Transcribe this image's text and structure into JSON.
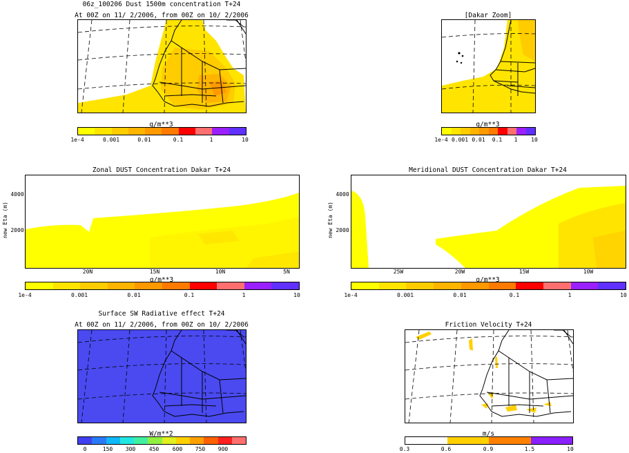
{
  "dust_map": {
    "title": "06z_100206 Dust 1500m concentration T+24",
    "subtitle": "At 00Z on 11/ 2/2006, from 00Z on 10/ 2/2006",
    "units": "g/m**3",
    "ticks": [
      "1e-4",
      "0.001",
      "0.01",
      "0.1",
      "1",
      "10"
    ]
  },
  "dakar_zoom": {
    "title": "[Dakar Zoom]",
    "units": "g/m**3",
    "ticks": [
      "1e-4",
      "0.001",
      "0.01",
      "0.1",
      "1",
      "10"
    ]
  },
  "zonal": {
    "title": "Zonal DUST Concentration Dakar T+24",
    "ylabel": "new Eta (m)",
    "yticks": [
      "4000",
      "2000"
    ],
    "xticks": [
      "20N",
      "15N",
      "10N",
      "5N"
    ],
    "units": "g/m**3",
    "ticks": [
      "1e-4",
      "0.001",
      "0.01",
      "0.1",
      "1",
      "10"
    ]
  },
  "meridional": {
    "title": "Meridional DUST Concentration Dakar T+24",
    "ylabel": "new Eta (m)",
    "yticks": [
      "4000",
      "2000"
    ],
    "xticks": [
      "25W",
      "20W",
      "15W",
      "10W"
    ],
    "units": "g/m**3",
    "ticks": [
      "1e-4",
      "0.001",
      "0.01",
      "0.1",
      "1",
      "10"
    ]
  },
  "sw_map": {
    "title": "Surface SW Radiative effect T+24",
    "subtitle": "At 00Z on 11/ 2/2006, from 00Z on 10/ 2/2006",
    "units": "W/m**2",
    "ticks": [
      "0",
      "150",
      "300",
      "450",
      "600",
      "750",
      "900"
    ]
  },
  "friction_map": {
    "title": "Friction Velocity T+24",
    "units": "m/s",
    "ticks": [
      "0.3",
      "0.6",
      "0.9",
      "1.5",
      "10"
    ]
  },
  "colors": {
    "dust_scale": [
      "#ffff00",
      "#ffe400",
      "#ffcc00",
      "#ffb400",
      "#ff9900",
      "#ff7a00",
      "#ff0000",
      "#ff6f6f",
      "#9a20ff",
      "#6030ff"
    ],
    "sw_fill": "#4a4af0",
    "sw_scale": [
      "#4040f0",
      "#2a7af8",
      "#10b8f8",
      "#20e8e0",
      "#40f0a0",
      "#90f040",
      "#e0f020",
      "#ffd000",
      "#ffa000",
      "#ff6000",
      "#ff2020",
      "#ff6f6f"
    ],
    "friction_scale": [
      "#ffffff",
      "#ffd000",
      "#ff8000",
      "#8a20ff"
    ]
  }
}
